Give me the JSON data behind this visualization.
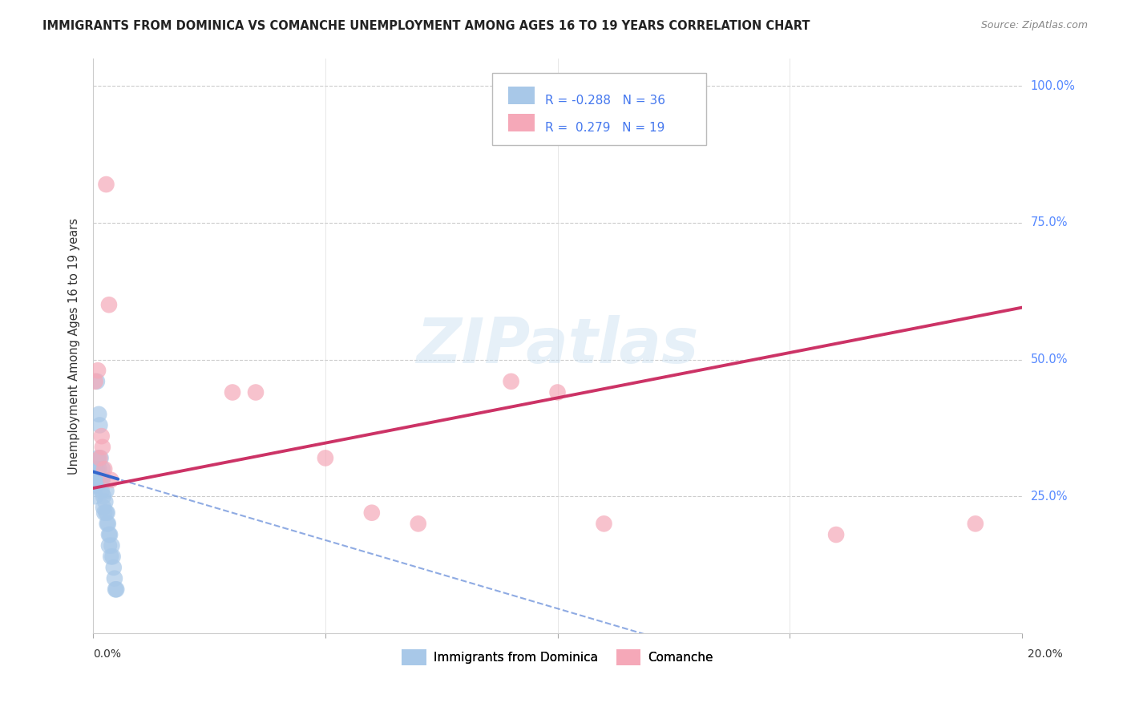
{
  "title": "IMMIGRANTS FROM DOMINICA VS COMANCHE UNEMPLOYMENT AMONG AGES 16 TO 19 YEARS CORRELATION CHART",
  "source": "Source: ZipAtlas.com",
  "ylabel": "Unemployment Among Ages 16 to 19 years",
  "xlim": [
    0.0,
    0.2
  ],
  "ylim": [
    0.0,
    1.05
  ],
  "blue_R": -0.288,
  "blue_N": 36,
  "pink_R": 0.279,
  "pink_N": 19,
  "blue_color": "#a8c8e8",
  "pink_color": "#f5a8b8",
  "blue_line_color": "#3366cc",
  "pink_line_color": "#cc3366",
  "legend_label1": "Immigrants from Dominica",
  "legend_label2": "Comanche",
  "blue_scatter_x": [
    0.0002,
    0.0003,
    0.0004,
    0.0005,
    0.0006,
    0.0008,
    0.0008,
    0.001,
    0.0012,
    0.0012,
    0.0014,
    0.0015,
    0.0016,
    0.0018,
    0.0018,
    0.002,
    0.002,
    0.0022,
    0.0022,
    0.0024,
    0.0026,
    0.0028,
    0.0028,
    0.003,
    0.003,
    0.0032,
    0.0034,
    0.0034,
    0.0036,
    0.0038,
    0.004,
    0.0042,
    0.0044,
    0.0046,
    0.0048,
    0.005
  ],
  "blue_scatter_y": [
    0.28,
    0.3,
    0.25,
    0.27,
    0.28,
    0.46,
    0.3,
    0.32,
    0.4,
    0.3,
    0.38,
    0.28,
    0.32,
    0.28,
    0.26,
    0.3,
    0.28,
    0.25,
    0.23,
    0.22,
    0.24,
    0.26,
    0.22,
    0.22,
    0.2,
    0.2,
    0.18,
    0.16,
    0.18,
    0.14,
    0.16,
    0.14,
    0.12,
    0.1,
    0.08,
    0.08
  ],
  "pink_scatter_x": [
    0.0004,
    0.001,
    0.0014,
    0.0018,
    0.002,
    0.0024,
    0.0028,
    0.0034,
    0.0038,
    0.03,
    0.035,
    0.05,
    0.06,
    0.07,
    0.09,
    0.1,
    0.11,
    0.16,
    0.19
  ],
  "pink_scatter_y": [
    0.46,
    0.48,
    0.32,
    0.36,
    0.34,
    0.3,
    0.82,
    0.6,
    0.28,
    0.44,
    0.44,
    0.32,
    0.22,
    0.2,
    0.46,
    0.44,
    0.2,
    0.18,
    0.2
  ],
  "blue_line_start_x": 0.0,
  "blue_line_end_x": 0.2,
  "blue_line_y0": 0.295,
  "blue_line_slope": -2.5,
  "pink_line_y0": 0.265,
  "pink_line_slope": 1.65
}
